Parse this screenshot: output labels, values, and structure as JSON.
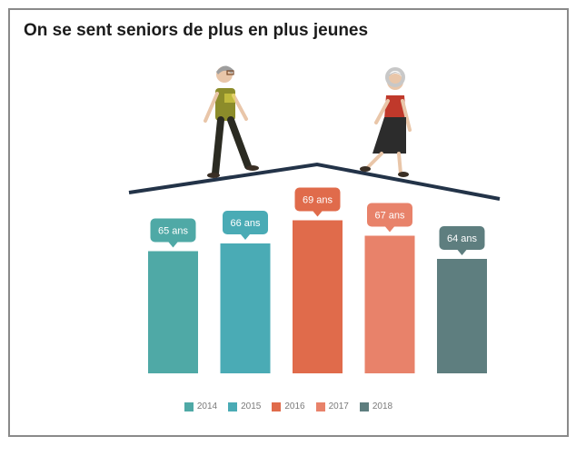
{
  "title": "On se sent seniors de plus en plus jeunes",
  "chart_data": {
    "type": "bar",
    "title": "On se sent seniors de plus en plus jeunes",
    "categories": [
      "2014",
      "2015",
      "2016",
      "2017",
      "2018"
    ],
    "values": [
      65,
      66,
      69,
      67,
      64
    ],
    "labels": [
      "65 ans",
      "66 ans",
      "69 ans",
      "67 ans",
      "64 ans"
    ],
    "colors": [
      "#4fa9a6",
      "#4aabb5",
      "#e06b4b",
      "#e8826a",
      "#5e7e7f"
    ],
    "ylim": [
      0,
      75
    ],
    "legend": "bottom"
  }
}
